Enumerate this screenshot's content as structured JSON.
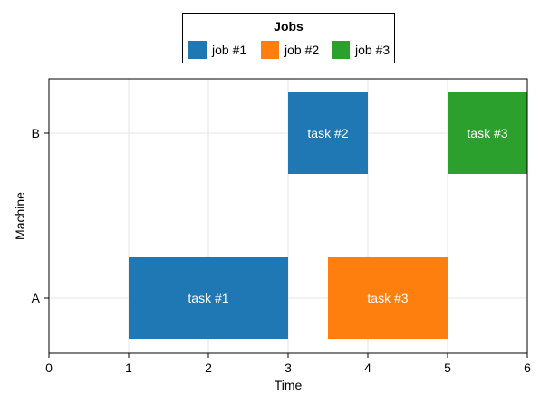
{
  "chart_data": {
    "type": "bar",
    "orientation": "horizontal-gantt",
    "xlabel": "Time",
    "ylabel": "Machine",
    "xlim": [
      0,
      6
    ],
    "xticks": [
      0,
      1,
      2,
      3,
      4,
      5,
      6
    ],
    "categories": [
      "A",
      "B"
    ],
    "grid": true,
    "legend": {
      "title": "Jobs",
      "position": "top-center",
      "entries": [
        {
          "name": "job #1",
          "color": "#1f77b4"
        },
        {
          "name": "job #2",
          "color": "#ff7f0e"
        },
        {
          "name": "job #3",
          "color": "#2ca02c"
        }
      ]
    },
    "bars": [
      {
        "machine": "A",
        "start": 1,
        "end": 3,
        "label": "task #1",
        "job": "job #1",
        "color": "#1f77b4"
      },
      {
        "machine": "A",
        "start": 3.5,
        "end": 5,
        "label": "task #3",
        "job": "job #2",
        "color": "#ff7f0e"
      },
      {
        "machine": "B",
        "start": 3,
        "end": 4,
        "label": "task #2",
        "job": "job #1",
        "color": "#1f77b4"
      },
      {
        "machine": "B",
        "start": 5,
        "end": 6,
        "label": "task #3",
        "job": "job #3",
        "color": "#2ca02c"
      }
    ]
  }
}
